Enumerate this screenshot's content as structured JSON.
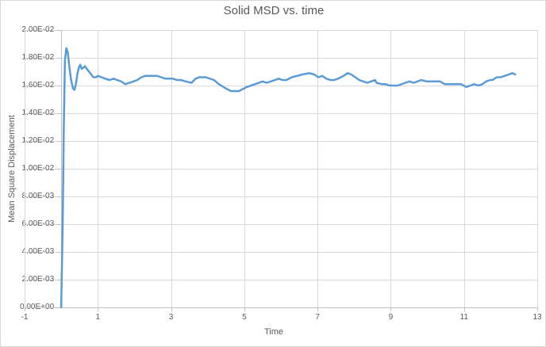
{
  "chart": {
    "title": "Solid MSD vs. time",
    "colors": {
      "series_line": "#5B9BD5",
      "gridline": "#D9D9D9",
      "axis_line": "#BFBFBF",
      "text": "#595959",
      "background": "#FFFFFF"
    }
  },
  "chart_data": {
    "type": "line",
    "title": "Solid MSD vs. time",
    "xlabel": "Time",
    "ylabel": "Mean Square Displacement",
    "xlim": [
      -1,
      13
    ],
    "ylim": [
      0,
      0.02
    ],
    "x_ticks": [
      -1,
      1,
      3,
      5,
      7,
      9,
      11,
      13
    ],
    "x_tick_labels": [
      "-1",
      "1",
      "3",
      "5",
      "7",
      "9",
      "11",
      "13"
    ],
    "y_tick_values": [
      0,
      0.002,
      0.004,
      0.006,
      0.008,
      0.01,
      0.012,
      0.014,
      0.016,
      0.018,
      0.02
    ],
    "y_tick_labels": [
      "0.00E+00",
      "2.00E-03",
      "4.00E-03",
      "6.00E-03",
      "8.00E-03",
      "1.00E-02",
      "1.20E-02",
      "1.40E-02",
      "1.60E-02",
      "1.80E-02",
      "2.00E-02"
    ],
    "grid": true,
    "legend": false,
    "vertical_axis_cross_x": 0,
    "series": [
      {
        "name": "Solid MSD",
        "color": "#5B9BD5",
        "points": [
          [
            0.0,
            0.0
          ],
          [
            0.04,
            0.006
          ],
          [
            0.07,
            0.013
          ],
          [
            0.1,
            0.0178
          ],
          [
            0.14,
            0.0187
          ],
          [
            0.18,
            0.0184
          ],
          [
            0.22,
            0.0174
          ],
          [
            0.27,
            0.0164
          ],
          [
            0.32,
            0.0158
          ],
          [
            0.36,
            0.0157
          ],
          [
            0.4,
            0.0161
          ],
          [
            0.44,
            0.0168
          ],
          [
            0.48,
            0.0173
          ],
          [
            0.52,
            0.0175
          ],
          [
            0.56,
            0.0172
          ],
          [
            0.61,
            0.0173
          ],
          [
            0.65,
            0.0174
          ],
          [
            0.7,
            0.0172
          ],
          [
            0.76,
            0.017
          ],
          [
            0.82,
            0.0168
          ],
          [
            0.88,
            0.0166
          ],
          [
            0.95,
            0.0166
          ],
          [
            1.0,
            0.0167
          ],
          [
            1.1,
            0.0166
          ],
          [
            1.2,
            0.0165
          ],
          [
            1.32,
            0.0164
          ],
          [
            1.43,
            0.0165
          ],
          [
            1.53,
            0.0164
          ],
          [
            1.64,
            0.0163
          ],
          [
            1.75,
            0.0161
          ],
          [
            1.86,
            0.0162
          ],
          [
            1.97,
            0.0163
          ],
          [
            2.08,
            0.0164
          ],
          [
            2.19,
            0.0166
          ],
          [
            2.29,
            0.0167
          ],
          [
            2.4,
            0.0167
          ],
          [
            2.51,
            0.0167
          ],
          [
            2.62,
            0.0167
          ],
          [
            2.73,
            0.0166
          ],
          [
            2.84,
            0.0165
          ],
          [
            2.95,
            0.0165
          ],
          [
            3.05,
            0.0165
          ],
          [
            3.16,
            0.0164
          ],
          [
            3.27,
            0.0164
          ],
          [
            3.4,
            0.0163
          ],
          [
            3.56,
            0.0162
          ],
          [
            3.67,
            0.0165
          ],
          [
            3.77,
            0.0166
          ],
          [
            3.95,
            0.0166
          ],
          [
            4.17,
            0.0164
          ],
          [
            4.31,
            0.0161
          ],
          [
            4.49,
            0.0158
          ],
          [
            4.64,
            0.0156
          ],
          [
            4.75,
            0.0156
          ],
          [
            4.85,
            0.0156
          ],
          [
            5.07,
            0.0159
          ],
          [
            5.29,
            0.0161
          ],
          [
            5.5,
            0.0163
          ],
          [
            5.61,
            0.0162
          ],
          [
            5.72,
            0.0163
          ],
          [
            5.94,
            0.0165
          ],
          [
            6.04,
            0.0164
          ],
          [
            6.15,
            0.0164
          ],
          [
            6.3,
            0.0166
          ],
          [
            6.44,
            0.0167
          ],
          [
            6.59,
            0.0168
          ],
          [
            6.77,
            0.0169
          ],
          [
            6.91,
            0.0168
          ],
          [
            7.02,
            0.0166
          ],
          [
            7.13,
            0.0167
          ],
          [
            7.24,
            0.0165
          ],
          [
            7.35,
            0.0164
          ],
          [
            7.45,
            0.0164
          ],
          [
            7.56,
            0.0165
          ],
          [
            7.71,
            0.0167
          ],
          [
            7.82,
            0.0169
          ],
          [
            7.92,
            0.0168
          ],
          [
            8.03,
            0.0166
          ],
          [
            8.14,
            0.0164
          ],
          [
            8.25,
            0.0163
          ],
          [
            8.36,
            0.0162
          ],
          [
            8.46,
            0.0163
          ],
          [
            8.57,
            0.0164
          ],
          [
            8.61,
            0.0162
          ],
          [
            8.75,
            0.0161
          ],
          [
            8.86,
            0.0161
          ],
          [
            8.97,
            0.016
          ],
          [
            9.08,
            0.016
          ],
          [
            9.19,
            0.016
          ],
          [
            9.4,
            0.0162
          ],
          [
            9.51,
            0.0163
          ],
          [
            9.62,
            0.0162
          ],
          [
            9.73,
            0.0163
          ],
          [
            9.83,
            0.0164
          ],
          [
            9.98,
            0.0163
          ],
          [
            10.16,
            0.0163
          ],
          [
            10.34,
            0.0163
          ],
          [
            10.48,
            0.0161
          ],
          [
            10.63,
            0.0161
          ],
          [
            10.77,
            0.0161
          ],
          [
            10.92,
            0.0161
          ],
          [
            11.06,
            0.0159
          ],
          [
            11.17,
            0.016
          ],
          [
            11.28,
            0.0161
          ],
          [
            11.39,
            0.016
          ],
          [
            11.5,
            0.0161
          ],
          [
            11.6,
            0.0163
          ],
          [
            11.71,
            0.0164
          ],
          [
            11.78,
            0.0164
          ],
          [
            11.89,
            0.0166
          ],
          [
            12.0,
            0.0166
          ],
          [
            12.11,
            0.0167
          ],
          [
            12.22,
            0.0168
          ],
          [
            12.32,
            0.0169
          ],
          [
            12.4,
            0.0168
          ]
        ]
      }
    ]
  }
}
